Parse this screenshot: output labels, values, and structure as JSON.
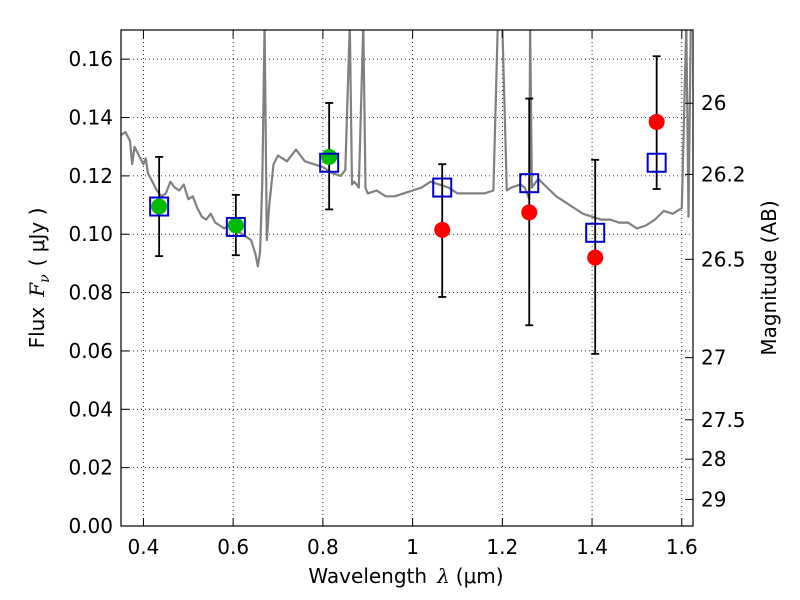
{
  "chart_data": {
    "type": "scatter",
    "xlabel": {
      "prefix": "Wavelength",
      "symbol": "λ",
      "unit": "(μm)"
    },
    "ylabel": {
      "prefix": "Flux",
      "symbol": "F",
      "sub": "ν",
      "unit": "( μJy )"
    },
    "y2label": "Magnitude (AB)",
    "xlim": [
      0.35,
      1.625
    ],
    "ylim": [
      0.0,
      0.17
    ],
    "xticks": [
      0.4,
      0.6,
      0.8,
      1.0,
      1.2,
      1.4,
      1.6
    ],
    "xtick_labels": [
      "0.4",
      "0.6",
      "0.8",
      "1",
      "1.2",
      "1.4",
      "1.6"
    ],
    "yticks": [
      0.0,
      0.02,
      0.04,
      0.06,
      0.08,
      0.1,
      0.12,
      0.14,
      0.16
    ],
    "ytick_labels": [
      "0.00",
      "0.02",
      "0.04",
      "0.06",
      "0.08",
      "0.10",
      "0.12",
      "0.14",
      "0.16"
    ],
    "y2ticks": [
      {
        "label": "26",
        "flux": 0.1449
      },
      {
        "label": "26.2",
        "flux": 0.1205
      },
      {
        "label": "26.5",
        "flux": 0.0914
      },
      {
        "label": "27",
        "flux": 0.0577
      },
      {
        "label": "27.5",
        "flux": 0.0364
      },
      {
        "label": "28",
        "flux": 0.0229
      },
      {
        "label": "29",
        "flux": 0.0091
      }
    ],
    "grid": true,
    "series": [
      {
        "kind": "template-spectrum",
        "color": "#808080",
        "points": [
          [
            0.35,
            0.134
          ],
          [
            0.36,
            0.135
          ],
          [
            0.37,
            0.132
          ],
          [
            0.375,
            0.124
          ],
          [
            0.38,
            0.13
          ],
          [
            0.39,
            0.127
          ],
          [
            0.4,
            0.124
          ],
          [
            0.405,
            0.126
          ],
          [
            0.41,
            0.121
          ],
          [
            0.42,
            0.118
          ],
          [
            0.43,
            0.115
          ],
          [
            0.44,
            0.113
          ],
          [
            0.45,
            0.114
          ],
          [
            0.46,
            0.118
          ],
          [
            0.47,
            0.116
          ],
          [
            0.48,
            0.115
          ],
          [
            0.49,
            0.117
          ],
          [
            0.5,
            0.112
          ],
          [
            0.51,
            0.113
          ],
          [
            0.52,
            0.109
          ],
          [
            0.53,
            0.106
          ],
          [
            0.54,
            0.105
          ],
          [
            0.55,
            0.107
          ],
          [
            0.56,
            0.104
          ],
          [
            0.57,
            0.103
          ],
          [
            0.58,
            0.102
          ],
          [
            0.59,
            0.103
          ],
          [
            0.6,
            0.102
          ],
          [
            0.61,
            0.101
          ],
          [
            0.62,
            0.1
          ],
          [
            0.63,
            0.099
          ],
          [
            0.64,
            0.098
          ],
          [
            0.65,
            0.093
          ],
          [
            0.655,
            0.089
          ],
          [
            0.66,
            0.094
          ],
          [
            0.665,
            0.118
          ],
          [
            0.67,
            0.172
          ],
          [
            0.675,
            0.098
          ],
          [
            0.68,
            0.109
          ],
          [
            0.69,
            0.124
          ],
          [
            0.7,
            0.127
          ],
          [
            0.72,
            0.125
          ],
          [
            0.74,
            0.129
          ],
          [
            0.76,
            0.125
          ],
          [
            0.78,
            0.124
          ],
          [
            0.8,
            0.123
          ],
          [
            0.82,
            0.121
          ],
          [
            0.84,
            0.12
          ],
          [
            0.85,
            0.122
          ],
          [
            0.86,
            0.172
          ],
          [
            0.865,
            0.117
          ],
          [
            0.87,
            0.118
          ],
          [
            0.88,
            0.116
          ],
          [
            0.89,
            0.172
          ],
          [
            0.895,
            0.116
          ],
          [
            0.9,
            0.114
          ],
          [
            0.92,
            0.115
          ],
          [
            0.94,
            0.113
          ],
          [
            0.96,
            0.113
          ],
          [
            0.98,
            0.114
          ],
          [
            1.0,
            0.115
          ],
          [
            1.02,
            0.116
          ],
          [
            1.04,
            0.118
          ],
          [
            1.06,
            0.117
          ],
          [
            1.08,
            0.116
          ],
          [
            1.1,
            0.114
          ],
          [
            1.12,
            0.114
          ],
          [
            1.14,
            0.114
          ],
          [
            1.16,
            0.114
          ],
          [
            1.18,
            0.115
          ],
          [
            1.19,
            0.172
          ],
          [
            1.2,
            0.172
          ],
          [
            1.21,
            0.115
          ],
          [
            1.22,
            0.116
          ],
          [
            1.24,
            0.117
          ],
          [
            1.25,
            0.116
          ],
          [
            1.26,
            0.112
          ],
          [
            1.262,
            0.172
          ],
          [
            1.266,
            0.116
          ],
          [
            1.28,
            0.119
          ],
          [
            1.3,
            0.116
          ],
          [
            1.32,
            0.113
          ],
          [
            1.34,
            0.111
          ],
          [
            1.36,
            0.109
          ],
          [
            1.38,
            0.107
          ],
          [
            1.4,
            0.106
          ],
          [
            1.42,
            0.105
          ],
          [
            1.44,
            0.105
          ],
          [
            1.46,
            0.104
          ],
          [
            1.48,
            0.104
          ],
          [
            1.5,
            0.102
          ],
          [
            1.52,
            0.103
          ],
          [
            1.54,
            0.105
          ],
          [
            1.56,
            0.108
          ],
          [
            1.58,
            0.107
          ],
          [
            1.6,
            0.109
          ],
          [
            1.61,
            0.172
          ],
          [
            1.615,
            0.106
          ],
          [
            1.62,
            0.172
          ],
          [
            1.625,
            0.172
          ]
        ]
      },
      {
        "kind": "observed-green",
        "color": "#00bb00",
        "points": [
          {
            "x": 0.435,
            "y": 0.1095
          },
          {
            "x": 0.606,
            "y": 0.103
          },
          {
            "x": 0.814,
            "y": 0.1265
          }
        ]
      },
      {
        "kind": "observed-red",
        "color": "#ff0000",
        "points": [
          {
            "x": 1.066,
            "y": 0.1015
          },
          {
            "x": 1.26,
            "y": 0.1075
          },
          {
            "x": 1.407,
            "y": 0.092
          },
          {
            "x": 1.544,
            "y": 0.1385
          }
        ]
      },
      {
        "kind": "model-squares",
        "color": "#0000cc",
        "points": [
          {
            "x": 0.435,
            "y": 0.1095
          },
          {
            "x": 0.606,
            "y": 0.1025
          },
          {
            "x": 0.814,
            "y": 0.1245
          },
          {
            "x": 1.066,
            "y": 0.116
          },
          {
            "x": 1.26,
            "y": 0.1175
          },
          {
            "x": 1.407,
            "y": 0.1005
          },
          {
            "x": 1.544,
            "y": 0.1245
          }
        ]
      },
      {
        "kind": "errorbars",
        "color": "#000000",
        "points": [
          {
            "x": 0.435,
            "low": 0.0925,
            "high": 0.1265
          },
          {
            "x": 0.606,
            "low": 0.0928,
            "high": 0.1135
          },
          {
            "x": 0.814,
            "low": 0.1085,
            "high": 0.145
          },
          {
            "x": 1.066,
            "low": 0.0785,
            "high": 0.124
          },
          {
            "x": 1.26,
            "low": 0.0688,
            "high": 0.1465
          },
          {
            "x": 1.407,
            "low": 0.059,
            "high": 0.1255
          },
          {
            "x": 1.544,
            "low": 0.1155,
            "high": 0.161
          }
        ]
      }
    ]
  }
}
